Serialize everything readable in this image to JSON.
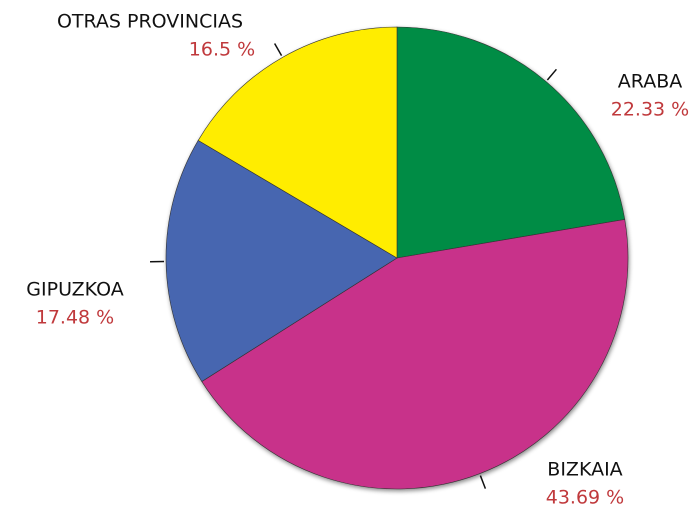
{
  "chart_data": {
    "type": "pie",
    "categories": [
      "ARABA",
      "BIZKAIA",
      "GIPUZKOA",
      "OTRAS PROVINCIAS"
    ],
    "values": [
      22.33,
      43.69,
      17.48,
      16.5
    ],
    "value_labels": [
      "22.33 %",
      "43.69 %",
      "17.48 %",
      "16.5 %"
    ],
    "colors": [
      "#008c44",
      "#c8318a",
      "#4766b0",
      "#ffed00"
    ]
  }
}
